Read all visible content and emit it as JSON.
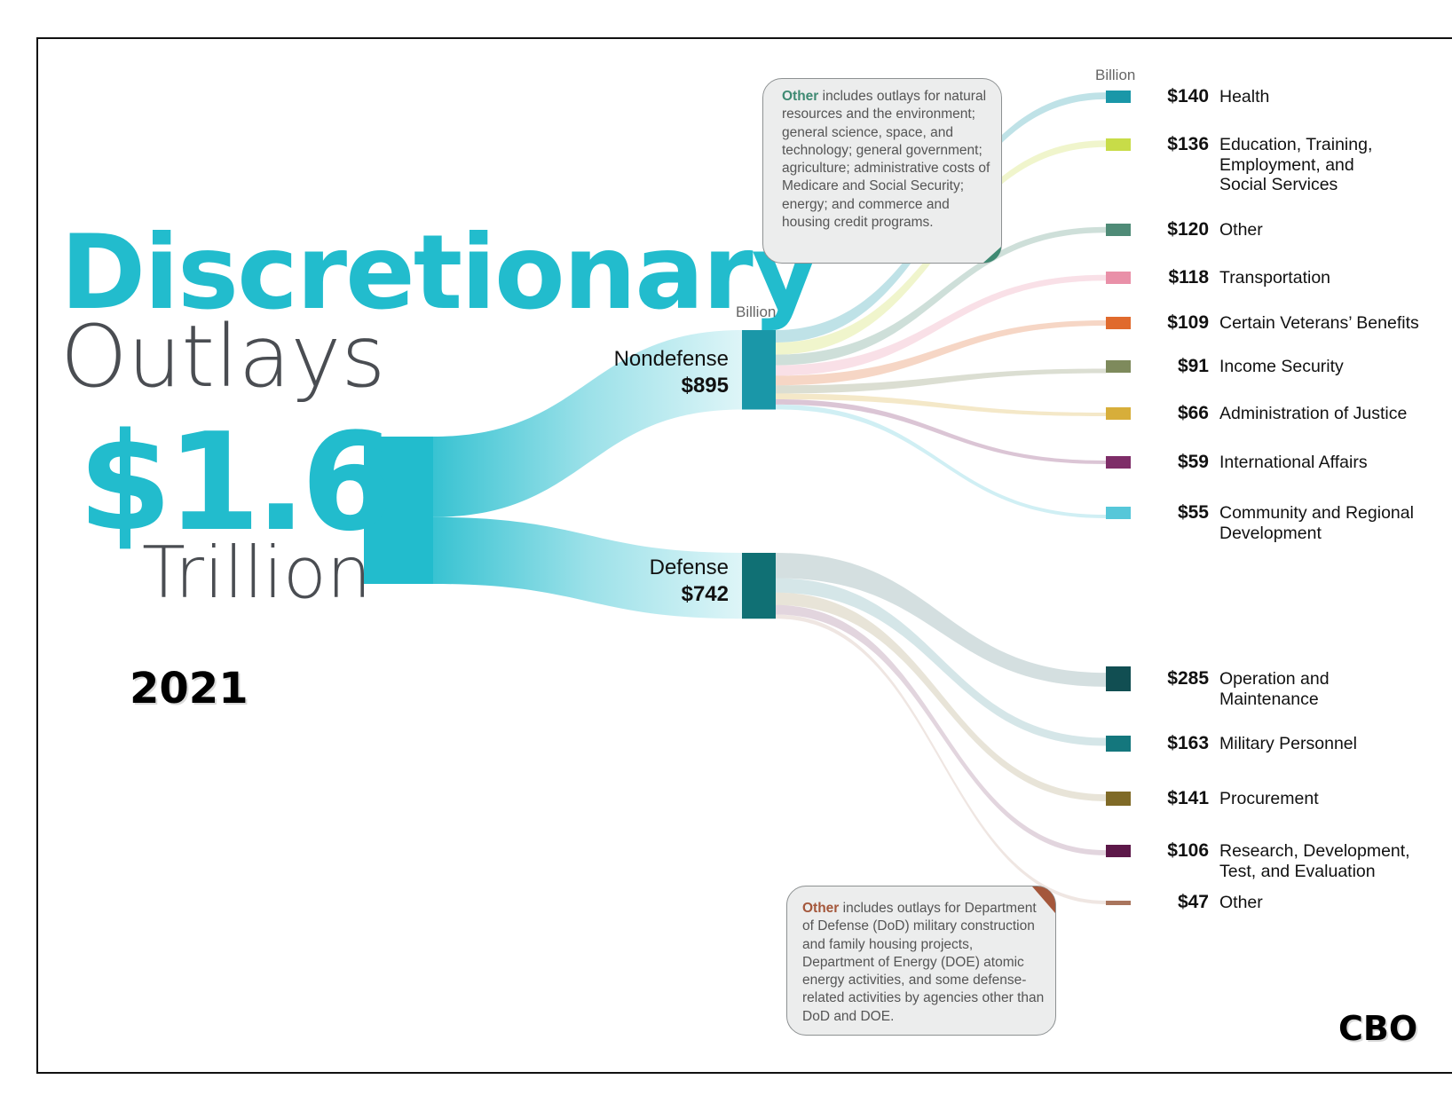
{
  "title": {
    "line1": "Discretionary",
    "line2": "Outlays"
  },
  "total": {
    "amount": "$1.6",
    "unit": "Trillion"
  },
  "year": "2021",
  "source": "CBO",
  "unit_labels": {
    "main": "Billion",
    "legend": "Billion"
  },
  "colors": {
    "accent": "#22bccd",
    "nondefense": "#1a97a8",
    "defense": "#107074",
    "text_dark": "#4a4d52"
  },
  "chart_data": {
    "type": "sankey",
    "total": {
      "label": "$1.6 Trillion",
      "value": 1637
    },
    "groups": [
      {
        "name": "Nondefense",
        "label": "$895",
        "value": 895,
        "color": "#1a97a8",
        "items": [
          {
            "value_label": "$140",
            "label": "Health",
            "value": 140,
            "color": "#1a97a8"
          },
          {
            "value_label": "$136",
            "label": "Education, Training, Employment, and Social Services",
            "value": 136,
            "color": "#c8dc48"
          },
          {
            "value_label": "$120",
            "label": "Other",
            "value": 120,
            "color": "#4f8b77"
          },
          {
            "value_label": "$118",
            "label": "Transportation",
            "value": 118,
            "color": "#e990a8"
          },
          {
            "value_label": "$109",
            "label": "Certain Veterans’ Benefits",
            "value": 109,
            "color": "#e06a2d"
          },
          {
            "value_label": "$91",
            "label": "Income Security",
            "value": 91,
            "color": "#7e8a5c"
          },
          {
            "value_label": "$66",
            "label": "Administration of Justice",
            "value": 66,
            "color": "#d7ae3a"
          },
          {
            "value_label": "$59",
            "label": "International Affairs",
            "value": 59,
            "color": "#7e2d68"
          },
          {
            "value_label": "$55",
            "label": "Community and Regional Development",
            "value": 55,
            "color": "#56c7d9"
          }
        ]
      },
      {
        "name": "Defense",
        "label": "$742",
        "value": 742,
        "color": "#107074",
        "items": [
          {
            "value_label": "$285",
            "label": "Operation and Maintenance",
            "value": 285,
            "color": "#114e52"
          },
          {
            "value_label": "$163",
            "label": "Military Personnel",
            "value": 163,
            "color": "#14777d"
          },
          {
            "value_label": "$141",
            "label": "Procurement",
            "value": 141,
            "color": "#7f6a27"
          },
          {
            "value_label": "$106",
            "label": "Research, Development, Test, and Evaluation",
            "value": 106,
            "color": "#5d1849"
          },
          {
            "value_label": "$47",
            "label": "Other",
            "value": 47,
            "color": "#a9755d"
          }
        ]
      }
    ]
  },
  "notes": [
    {
      "keyword": "Other",
      "keyword_color": "#3f8a73",
      "text": " includes outlays for natural resources and the environment; general science, space, and technology; general government; agriculture; administrative costs of Medicare and Social Security; energy; and commerce and housing credit programs."
    },
    {
      "keyword": "Other",
      "keyword_color": "#a4573b",
      "text": " includes outlays for Department of Defense (DoD) military construction and family housing projects, Department of Energy (DOE) atomic energy activities, and some defense-related activities by agencies other than DoD and DOE."
    }
  ]
}
